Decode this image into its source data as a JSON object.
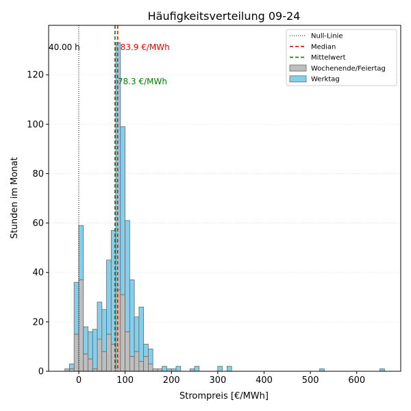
{
  "chart_data": {
    "type": "bar",
    "title": "Häufigkeitsverteilung 09-24",
    "xlabel": "Strompreis [€/MWh]",
    "ylabel": "Stunden im Monat",
    "xlim": [
      -65,
      695
    ],
    "ylim": [
      0,
      140
    ],
    "x_ticks": [
      0,
      100,
      200,
      300,
      400,
      500,
      600
    ],
    "y_ticks": [
      0,
      20,
      40,
      60,
      80,
      100,
      120
    ],
    "grid": "horizontal-dotted",
    "bin_width": 10,
    "stacked": true,
    "series": [
      {
        "name": "Wochenende/Feiertag",
        "color": "#bebebe",
        "bins": [
          [
            -30,
            1
          ],
          [
            -20,
            1
          ],
          [
            -10,
            15
          ],
          [
            0,
            37
          ],
          [
            10,
            7
          ],
          [
            20,
            5
          ],
          [
            30,
            1
          ],
          [
            40,
            13
          ],
          [
            50,
            8
          ],
          [
            60,
            15
          ],
          [
            70,
            11
          ],
          [
            80,
            33
          ],
          [
            90,
            31
          ],
          [
            100,
            16
          ],
          [
            110,
            6
          ],
          [
            120,
            8
          ],
          [
            130,
            4
          ],
          [
            140,
            6
          ],
          [
            150,
            3
          ],
          [
            160,
            1
          ],
          [
            170,
            1
          ]
        ]
      },
      {
        "name": "Werktag",
        "color": "#87ceeb",
        "bins": [
          [
            -30,
            0
          ],
          [
            -20,
            2
          ],
          [
            -10,
            21
          ],
          [
            0,
            22
          ],
          [
            10,
            11
          ],
          [
            20,
            11
          ],
          [
            30,
            16
          ],
          [
            40,
            15
          ],
          [
            50,
            17
          ],
          [
            60,
            30
          ],
          [
            70,
            46
          ],
          [
            80,
            100
          ],
          [
            90,
            68
          ],
          [
            100,
            45
          ],
          [
            110,
            31
          ],
          [
            120,
            14
          ],
          [
            130,
            22
          ],
          [
            140,
            5
          ],
          [
            150,
            6
          ],
          [
            160,
            0
          ],
          [
            170,
            0
          ],
          [
            180,
            2
          ],
          [
            190,
            1
          ],
          [
            200,
            1
          ],
          [
            210,
            2
          ],
          [
            240,
            1
          ],
          [
            250,
            2
          ],
          [
            300,
            2
          ],
          [
            320,
            2
          ],
          [
            520,
            1
          ],
          [
            650,
            1
          ]
        ]
      }
    ],
    "reference_lines": [
      {
        "name": "Null-Linie",
        "x": 0,
        "color": "#000000",
        "style": "dotted",
        "annotation": "40.00 h"
      },
      {
        "name": "Median",
        "x": 83.9,
        "color": "#ff0000",
        "style": "dashed",
        "annotation": "83.9 €/MWh"
      },
      {
        "name": "Mittelwert",
        "x": 78.3,
        "color": "#008000",
        "style": "dashed",
        "annotation": "78.3 €/MWh"
      }
    ],
    "legend": {
      "position": "top-right",
      "entries": [
        "Null-Linie",
        "Median",
        "Mittelwert",
        "Wochenende/Feiertag",
        "Werktag"
      ]
    }
  }
}
